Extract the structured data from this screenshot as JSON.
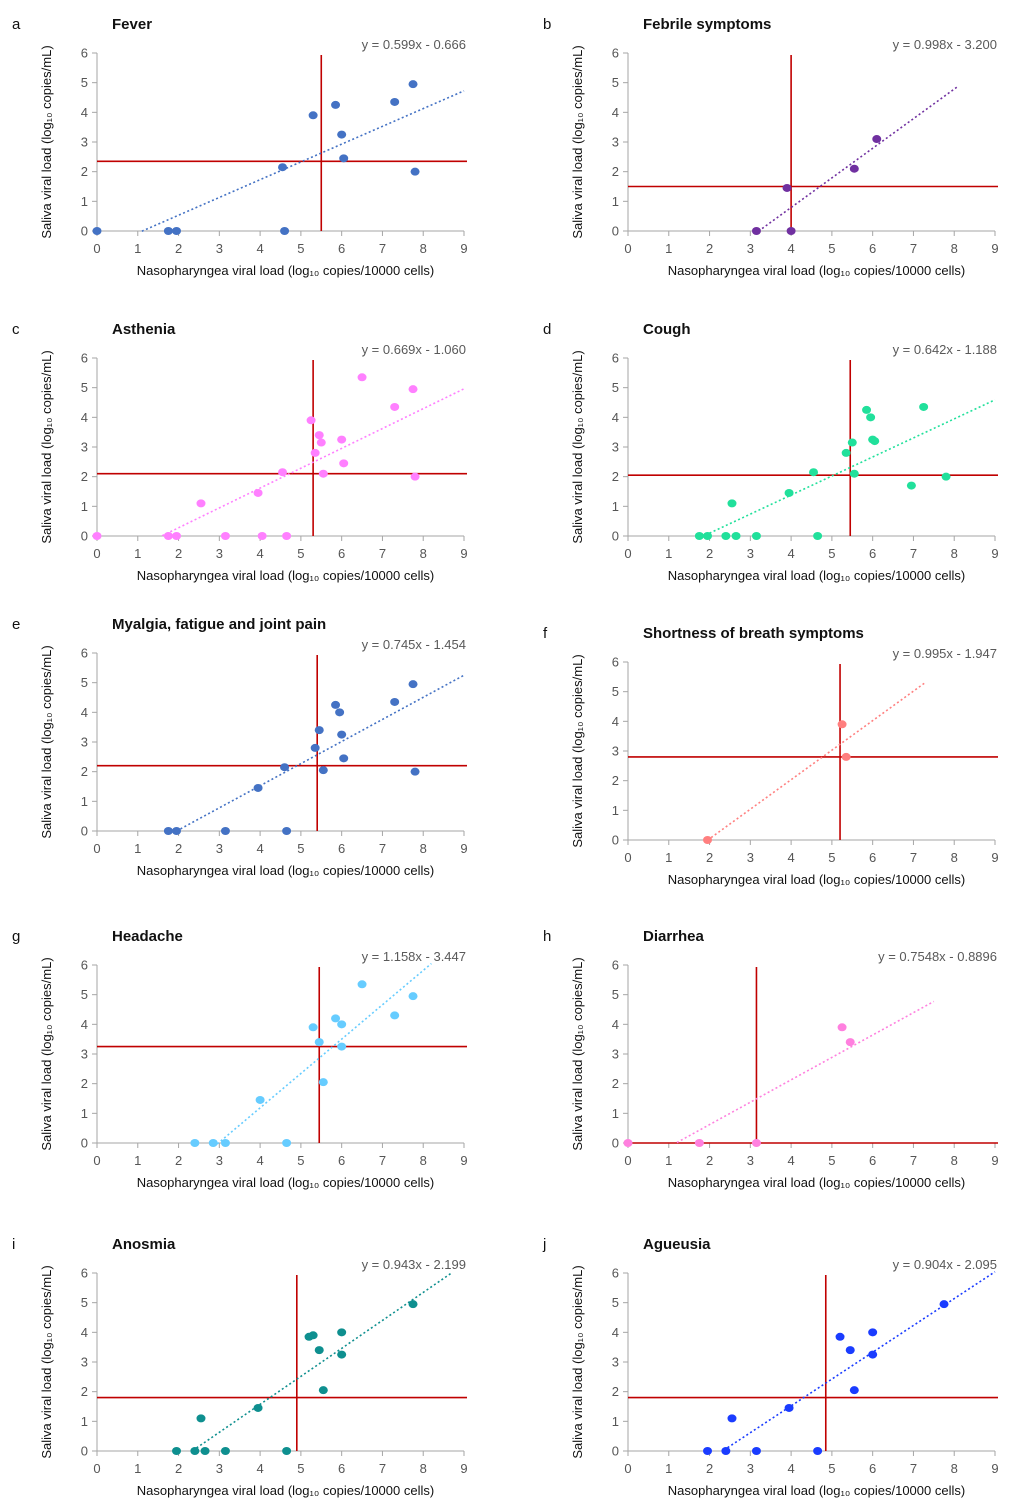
{
  "figure": {
    "xlabel": "Nasopharyngea viral load (log₁₀ copies/10000 cells)",
    "ylabel": "Saliva viral load (log₁₀ copies/mL)"
  },
  "chart_data": [
    {
      "type": "scatter",
      "panel": "a",
      "title": "Fever",
      "color": "#4472c4",
      "equation": "y = 0.599x - 0.666",
      "slope": 0.599,
      "intercept": -0.666,
      "trend_x": [
        1.1,
        9.0
      ],
      "hline": 2.35,
      "vline": 5.5,
      "x": [
        0,
        1.75,
        1.95,
        4.55,
        4.6,
        5.3,
        5.85,
        6.0,
        6.05,
        7.3,
        7.75,
        7.8
      ],
      "y": [
        0,
        0,
        0,
        2.15,
        0,
        3.9,
        4.25,
        3.25,
        2.45,
        4.35,
        4.95,
        2.0
      ],
      "xlim": [
        0,
        9
      ],
      "ylim": [
        0,
        6
      ],
      "grid": false
    },
    {
      "type": "scatter",
      "panel": "b",
      "title": "Febrile symptoms",
      "color": "#7030a0",
      "equation": "y = 0.998x - 3.200",
      "slope": 0.998,
      "intercept": -3.2,
      "trend_x": [
        3.2,
        8.1
      ],
      "hline": 1.5,
      "vline": 4.0,
      "x": [
        3.15,
        3.9,
        4.0,
        5.55,
        6.1
      ],
      "y": [
        0,
        1.45,
        0,
        2.1,
        3.1
      ],
      "xlim": [
        0,
        9
      ],
      "ylim": [
        0,
        6
      ],
      "grid": false
    },
    {
      "type": "scatter",
      "panel": "c",
      "title": "Asthenia",
      "color": "#ff80ff",
      "equation": "y = 0.669x - 1.060",
      "slope": 0.669,
      "intercept": -1.06,
      "trend_x": [
        1.6,
        9.0
      ],
      "hline": 2.1,
      "vline": 5.3,
      "x": [
        0,
        1.75,
        1.95,
        2.55,
        3.15,
        3.95,
        4.05,
        4.55,
        4.65,
        5.25,
        5.35,
        5.45,
        5.5,
        5.55,
        6.0,
        6.05,
        6.5,
        7.3,
        7.75,
        7.8
      ],
      "y": [
        0,
        0,
        0,
        1.1,
        0,
        1.45,
        0,
        2.15,
        0,
        3.9,
        2.8,
        3.4,
        3.15,
        2.1,
        3.25,
        2.45,
        5.35,
        4.35,
        4.95,
        2.0
      ],
      "xlim": [
        0,
        9
      ],
      "ylim": [
        0,
        6
      ],
      "grid": false
    },
    {
      "type": "scatter",
      "panel": "d",
      "title": "Cough",
      "color": "#21e09b",
      "equation": "y = 0.642x - 1.188",
      "slope": 0.642,
      "intercept": -1.188,
      "trend_x": [
        1.9,
        9.0
      ],
      "hline": 2.05,
      "vline": 5.45,
      "x": [
        1.75,
        1.95,
        2.4,
        2.55,
        2.65,
        3.15,
        3.95,
        4.55,
        4.65,
        5.35,
        5.5,
        5.55,
        5.85,
        5.95,
        6.0,
        6.05,
        6.95,
        7.25,
        7.8
      ],
      "y": [
        0,
        0,
        0,
        1.1,
        0,
        0,
        1.45,
        2.15,
        0,
        2.8,
        3.15,
        2.1,
        4.25,
        4.0,
        3.25,
        3.2,
        1.7,
        4.35,
        2.0
      ],
      "xlim": [
        0,
        9
      ],
      "ylim": [
        0,
        6
      ],
      "grid": false
    },
    {
      "type": "scatter",
      "panel": "e",
      "title": "Myalgia, fatigue and joint pain",
      "color": "#4472c4",
      "equation": "y = 0.745x - 1.454",
      "slope": 0.745,
      "intercept": -1.454,
      "trend_x": [
        1.95,
        9.0
      ],
      "hline": 2.2,
      "vline": 5.4,
      "x": [
        1.75,
        1.95,
        3.15,
        3.95,
        4.6,
        4.65,
        5.35,
        5.45,
        5.55,
        5.85,
        5.95,
        6.0,
        6.05,
        7.3,
        7.75,
        7.8
      ],
      "y": [
        0,
        0,
        0,
        1.45,
        2.15,
        0,
        2.8,
        3.4,
        2.05,
        4.25,
        4.0,
        3.25,
        2.45,
        4.35,
        4.95,
        2.0
      ],
      "xlim": [
        0,
        9
      ],
      "ylim": [
        0,
        6
      ],
      "grid": false
    },
    {
      "type": "scatter",
      "panel": "f",
      "title": "Shortness of breath symptoms",
      "color": "#ff7f7f",
      "equation": "y = 0.995x - 1.947",
      "slope": 0.995,
      "intercept": -1.947,
      "trend_x": [
        1.95,
        7.3
      ],
      "hline": 2.8,
      "vline": 5.2,
      "x": [
        1.95,
        5.25,
        5.35
      ],
      "y": [
        0,
        3.9,
        2.8
      ],
      "xlim": [
        0,
        9
      ],
      "ylim": [
        0,
        6
      ],
      "grid": false
    },
    {
      "type": "scatter",
      "panel": "g",
      "title": "Headache",
      "color": "#66ccff",
      "equation": "y = 1.158x - 3.447",
      "slope": 1.158,
      "intercept": -3.447,
      "trend_x": [
        2.95,
        8.2
      ],
      "hline": 3.25,
      "vline": 5.45,
      "x": [
        2.4,
        2.85,
        3.15,
        4.0,
        4.65,
        5.3,
        5.45,
        5.55,
        5.85,
        6.0,
        6.0,
        6.5,
        7.3,
        7.75
      ],
      "y": [
        0,
        0,
        0,
        1.45,
        0,
        3.9,
        3.4,
        2.05,
        4.2,
        4.0,
        3.25,
        5.35,
        4.3,
        4.95
      ],
      "xlim": [
        0,
        9
      ],
      "ylim": [
        0,
        6
      ],
      "grid": false
    },
    {
      "type": "scatter",
      "panel": "h",
      "title": "Diarrhea",
      "color": "#ff80df",
      "equation": "y = 0.7548x - 0.8896",
      "slope": 0.7548,
      "intercept": -0.8896,
      "trend_x": [
        1.2,
        7.5
      ],
      "hline": 0,
      "vline": 3.15,
      "x": [
        0,
        1.75,
        3.15,
        5.25,
        5.45
      ],
      "y": [
        0,
        0,
        0,
        3.9,
        3.4
      ],
      "xlim": [
        0,
        9
      ],
      "ylim": [
        0,
        6
      ],
      "grid": false
    },
    {
      "type": "scatter",
      "panel": "i",
      "title": "Anosmia",
      "color": "#0e8f8f",
      "equation": "y = 0.943x - 2.199",
      "slope": 0.943,
      "intercept": -2.199,
      "trend_x": [
        2.35,
        8.7
      ],
      "hline": 1.8,
      "vline": 4.9,
      "x": [
        1.95,
        2.4,
        2.55,
        2.65,
        3.15,
        3.95,
        4.65,
        5.2,
        5.3,
        5.45,
        5.55,
        6.0,
        6.0,
        7.75
      ],
      "y": [
        0,
        0,
        1.1,
        0,
        0,
        1.45,
        0,
        3.85,
        3.9,
        3.4,
        2.05,
        4.0,
        3.25,
        4.95
      ],
      "xlim": [
        0,
        9
      ],
      "ylim": [
        0,
        6
      ],
      "grid": false
    },
    {
      "type": "scatter",
      "panel": "j",
      "title": "Agueusia",
      "color": "#1a3cff",
      "equation": "y = 0.904x - 2.095",
      "slope": 0.904,
      "intercept": -2.095,
      "trend_x": [
        2.35,
        9.0
      ],
      "hline": 1.8,
      "vline": 4.85,
      "x": [
        1.95,
        2.4,
        2.55,
        3.15,
        3.95,
        4.65,
        5.2,
        5.45,
        5.55,
        6.0,
        6.0,
        7.75
      ],
      "y": [
        0,
        0,
        1.1,
        0,
        1.45,
        0,
        3.85,
        3.4,
        2.05,
        4.0,
        3.25,
        4.95
      ],
      "xlim": [
        0,
        9
      ],
      "ylim": [
        0,
        6
      ],
      "grid": false
    }
  ]
}
